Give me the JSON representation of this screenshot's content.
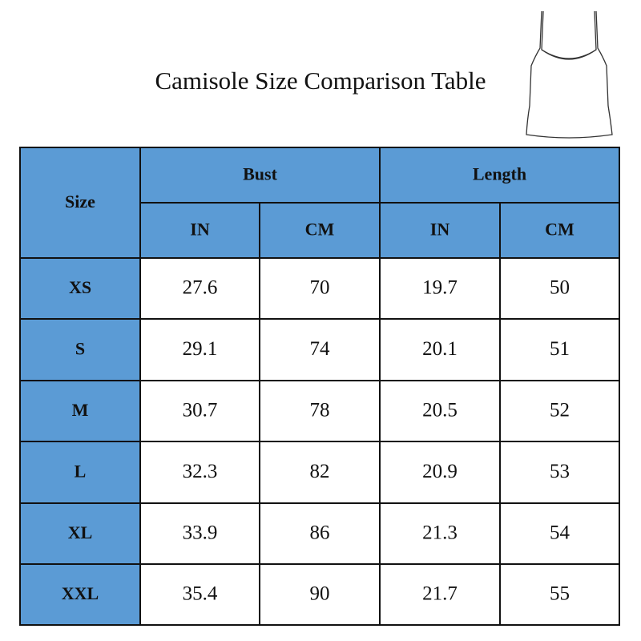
{
  "header": {
    "title": "Camisole Size Comparison Table"
  },
  "table": {
    "size_label": "Size",
    "groups": [
      "Bust",
      "Length"
    ],
    "units": [
      "IN",
      "CM",
      "IN",
      "CM"
    ],
    "rows": [
      [
        "XS",
        27.6,
        70,
        19.7,
        50
      ],
      [
        "S",
        29.1,
        74,
        20.1,
        51
      ],
      [
        "M",
        30.7,
        78,
        20.5,
        52
      ],
      [
        "L",
        32.3,
        82,
        20.9,
        53
      ],
      [
        "XL",
        33.9,
        86,
        21.3,
        54
      ],
      [
        "XXL",
        35.4,
        90,
        21.7,
        55
      ]
    ]
  }
}
